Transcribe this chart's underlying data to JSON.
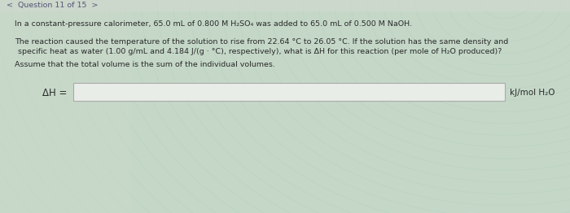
{
  "nav_text": "<  Question 11 of 15  >",
  "line1": "In a constant-pressure calorimeter, 65.0 mL of 0.800 M H₂SO₄ was added to 65.0 mL of 0.500 M NaOH.",
  "line2a": "The reaction caused the temperature of the solution to rise from 22.64 °C to 26.05 °C. If the solution has the same density and",
  "line2b": "specific heat as water (1.00 g/mL and 4.184 J/(g · °C), respectively), what is ΔH for this reaction (per mole of H₂O produced)?",
  "line3": "Assume that the total volume is the sum of the individual volumes.",
  "label_dH": "ΔH =",
  "unit_text": "kJ/mol H₂O",
  "bg_left_color": "#c5d8c8",
  "bg_right_color": "#b8d4c4",
  "spiral_color": "#c0d8c8",
  "text_color": "#2a2a2a",
  "nav_color": "#555577",
  "input_box_color": "#e8ede8",
  "input_border_color": "#aaaaaa",
  "nav_bg_color": "#cdd8cc"
}
